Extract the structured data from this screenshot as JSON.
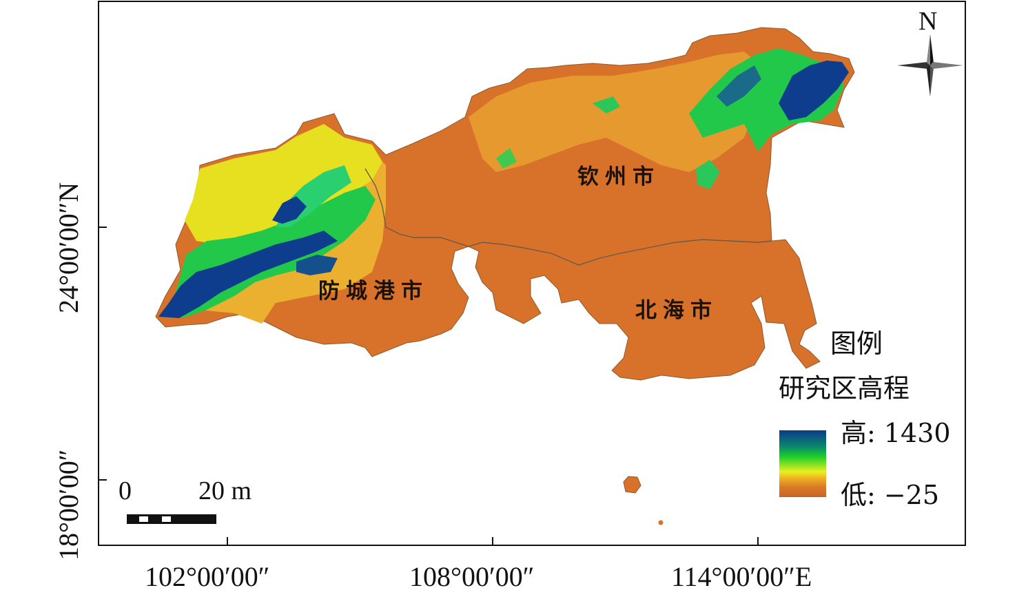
{
  "north_arrow": {
    "label": "N"
  },
  "axes": {
    "x_ticks": [
      "102°00′00″",
      "108°00′00″",
      "114°00′00″E"
    ],
    "y_ticks": [
      "24°00′00″N",
      "18°00′00″"
    ]
  },
  "cities": [
    {
      "name": "钦州市"
    },
    {
      "name": "防城港市"
    },
    {
      "name": "北海市"
    }
  ],
  "legend": {
    "title": "图例",
    "subtitle": "研究区高程",
    "high_label": "高: 1430",
    "low_label": "低: −25",
    "gradient_colors": [
      "#0a3a8a",
      "#0a8a6a",
      "#1fd02a",
      "#e8f020",
      "#f0b020",
      "#d87a28",
      "#c8622a"
    ]
  },
  "scale_bar": {
    "zero_label": "0",
    "distance_label": "20 m"
  },
  "colors": {
    "lowland": "#d8722a",
    "midland": "#ecb030",
    "upland": "#e6e020",
    "highland_green": "#22c84a",
    "peak_blue": "#0d3d8c"
  }
}
